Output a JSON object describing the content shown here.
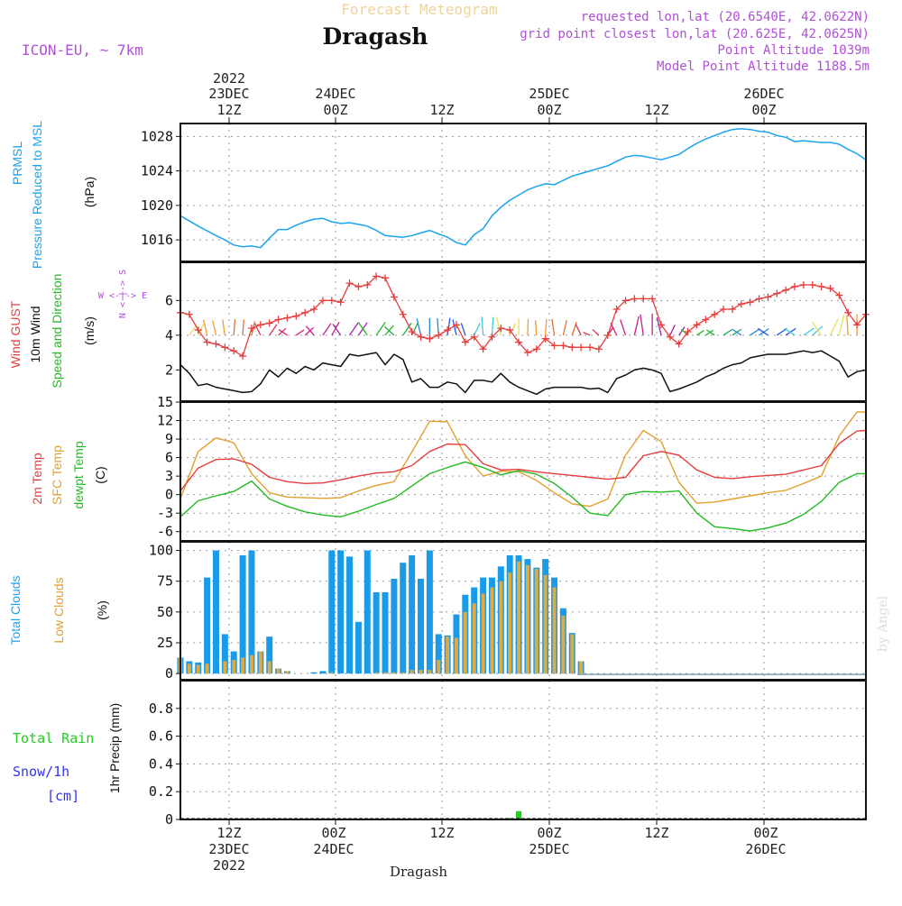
{
  "header": {
    "product": "Forecast Meteogram",
    "station": "Dragash",
    "model": "ICON-EU, ~ 7km",
    "requested": "requested lon,lat (20.6540E, 42.0622N)",
    "gridpoint": "grid point closest lon,lat (20.625E, 42.0625N)",
    "point_alt": "Point Altitude 1039m",
    "model_alt": "Model Point Altitude 1188.5m"
  },
  "colors": {
    "pressure": "#1aa3ee",
    "gust": "#e83d3d",
    "wind10": "#111111",
    "wind_dir": "#22bb22",
    "t2m": "#e83d3d",
    "sfc": "#e2a02e",
    "dewpt": "#22bb22",
    "total_clouds": "#1a9be8",
    "low_clouds": "#ddaa44",
    "rain": "#22cc22",
    "snow": "#3333ee",
    "side_magenta": "#b050d8"
  },
  "top_axis": [
    {
      "hour": "12Z",
      "date": "23DEC",
      "year": "2022"
    },
    {
      "hour": "00Z",
      "date": "24DEC",
      "year": ""
    },
    {
      "hour": "12Z",
      "date": "",
      "year": ""
    },
    {
      "hour": "00Z",
      "date": "25DEC",
      "year": ""
    },
    {
      "hour": "12Z",
      "date": "",
      "year": ""
    },
    {
      "hour": "00Z",
      "date": "26DEC",
      "year": ""
    }
  ],
  "bottom_axis": [
    {
      "hour": "12Z",
      "date": "23DEC",
      "year": "2022"
    },
    {
      "hour": "00Z",
      "date": "24DEC",
      "year": ""
    },
    {
      "hour": "12Z",
      "date": "",
      "year": ""
    },
    {
      "hour": "00Z",
      "date": "25DEC",
      "year": ""
    },
    {
      "hour": "12Z",
      "date": "",
      "year": ""
    },
    {
      "hour": "00Z",
      "date": "26DEC",
      "year": ""
    }
  ],
  "footer_label": "Dragash",
  "signature": "by Angel",
  "labels": {
    "prmsl": "PRMSL",
    "pressure_msl": "Pressure Reduced to MSL",
    "hpa": "(hPa)",
    "wind_gust": "Wind GUST",
    "wind10": "10m Wind",
    "speed_dir": "Speed and Direction",
    "ms": "(m/s)",
    "compass_ns": "N <-|-> S",
    "compass_we": "W <-|-> E",
    "t2m": "2m Temp",
    "sfc": "SFC Temp",
    "dewpt": "dewpt Temp",
    "c": "(C)",
    "total_clouds": "Total Clouds",
    "low_clouds": "Low Clouds",
    "pct": "(%)",
    "total_rain": "Total  Rain",
    "snow": "Snow/1h",
    "cm": "[cm]",
    "precip": "1hr Precip (mm)"
  },
  "chart_data": [
    {
      "type": "line",
      "title": "PRMSL Pressure Reduced to MSL",
      "ylabel": "hPa",
      "ylim": [
        1013.5,
        1029.5
      ],
      "yticks": [
        "1016",
        "1020",
        "1024",
        "1028"
      ],
      "x_hours": [
        0,
        2,
        4,
        5,
        6,
        7,
        8,
        9,
        10,
        11,
        12,
        13,
        14,
        15,
        16,
        17,
        18,
        19,
        20,
        21,
        22,
        23,
        24,
        25,
        26,
        27,
        28,
        29,
        30,
        31,
        32,
        33,
        34,
        35,
        36,
        37,
        38,
        39,
        40,
        41,
        42,
        43,
        44,
        45,
        46,
        47,
        48,
        49,
        50,
        51,
        52,
        53,
        54,
        55,
        56,
        57,
        58,
        59,
        60,
        61,
        62,
        63,
        64,
        65,
        66,
        67,
        68,
        69,
        70,
        71,
        72,
        73,
        74,
        75,
        76,
        77
      ],
      "series": [
        {
          "name": "PRMSL",
          "values": [
            1018.8,
            1017.6,
            1016.5,
            1016,
            1015.4,
            1015.2,
            1015.3,
            1015.1,
            1016.2,
            1017.2,
            1017.2,
            1017.7,
            1018.1,
            1018.4,
            1018.5,
            1018.1,
            1017.9,
            1018.0,
            1017.8,
            1017.6,
            1017.1,
            1016.5,
            1016.4,
            1016.3,
            1016.5,
            1016.8,
            1017.1,
            1016.7,
            1016.3,
            1015.7,
            1015.4,
            1016.6,
            1017.3,
            1018.8,
            1019.8,
            1020.6,
            1021.2,
            1021.8,
            1022.2,
            1022.5,
            1022.4,
            1022.9,
            1023.4,
            1023.7,
            1024.0,
            1024.3,
            1024.6,
            1025.1,
            1025.6,
            1025.8,
            1025.7,
            1025.5,
            1025.3,
            1025.6,
            1025.9,
            1026.6,
            1027.2,
            1027.7,
            1028.1,
            1028.5,
            1028.8,
            1028.9,
            1028.8,
            1028.6,
            1028.5,
            1028.1,
            1027.9,
            1027.4,
            1027.5,
            1027.4,
            1027.3,
            1027.3,
            1027.1,
            1026.5,
            1026.0,
            1025.3
          ]
        }
      ]
    },
    {
      "type": "line",
      "title": "Wind GUST / 10m Wind Speed and Direction",
      "ylabel": "m/s",
      "ylim": [
        0.2,
        8.2
      ],
      "yticks": [
        "2",
        "4",
        "6"
      ],
      "x_hours": [
        0,
        1,
        2,
        3,
        4,
        5,
        6,
        7,
        8,
        9,
        10,
        11,
        12,
        13,
        14,
        15,
        16,
        17,
        18,
        19,
        20,
        21,
        22,
        23,
        24,
        25,
        26,
        27,
        28,
        29,
        30,
        31,
        32,
        33,
        34,
        35,
        36,
        37,
        38,
        39,
        40,
        41,
        42,
        43,
        44,
        45,
        46,
        47,
        48,
        49,
        50,
        51,
        52,
        53,
        54,
        55,
        56,
        57,
        58,
        59,
        60,
        61,
        62,
        63,
        64,
        65,
        66,
        67,
        68,
        69,
        70,
        71,
        72,
        73,
        74,
        75,
        76,
        77
      ],
      "series": [
        {
          "name": "Wind GUST",
          "values": [
            5.3,
            5.2,
            4.3,
            3.6,
            3.5,
            3.3,
            3.1,
            2.8,
            4.4,
            4.6,
            4.7,
            4.9,
            5.0,
            5.1,
            5.3,
            5.5,
            6.0,
            6.0,
            5.9,
            7.0,
            6.8,
            6.9,
            7.4,
            7.3,
            6.2,
            5.2,
            4.2,
            3.9,
            3.8,
            4.0,
            4.3,
            4.6,
            3.6,
            3.9,
            3.2,
            3.9,
            4.4,
            4.3,
            3.6,
            3.0,
            3.2,
            3.8,
            3.4,
            3.4,
            3.3,
            3.3,
            3.3,
            3.2,
            4.0,
            5.5,
            6.0,
            6.1,
            6.1,
            6.1,
            4.6,
            3.9,
            3.5,
            4.2,
            4.6,
            4.9,
            5.2,
            5.5,
            5.5,
            5.8,
            5.9,
            6.1,
            6.2,
            6.4,
            6.6,
            6.8,
            6.9,
            6.9,
            6.8,
            6.7,
            6.3,
            5.3,
            4.6,
            5.2
          ]
        },
        {
          "name": "10m Wind",
          "values": [
            2.3,
            1.8,
            1.1,
            1.2,
            1.0,
            0.9,
            0.8,
            0.7,
            0.75,
            1.2,
            2.0,
            1.6,
            2.1,
            1.8,
            2.2,
            2.0,
            2.4,
            2.3,
            2.2,
            2.9,
            2.8,
            2.9,
            3.0,
            2.3,
            2.9,
            2.6,
            1.3,
            1.5,
            1.0,
            1.0,
            1.3,
            1.2,
            0.7,
            1.4,
            1.4,
            1.3,
            1.8,
            1.3,
            1.0,
            0.8,
            0.6,
            0.9,
            1.0,
            1.0,
            1.0,
            1.0,
            0.9,
            0.95,
            0.7,
            1.5,
            1.7,
            2.0,
            2.1,
            2.0,
            1.8,
            0.75,
            0.9,
            1.1,
            1.3,
            1.6,
            1.8,
            2.1,
            2.3,
            2.4,
            2.7,
            2.8,
            2.9,
            2.9,
            2.9,
            3.0,
            3.1,
            3.0,
            3.1,
            2.8,
            2.5,
            1.6,
            1.9,
            2.0
          ]
        }
      ]
    },
    {
      "type": "line",
      "title": "2m Temp / SFC Temp / dewpt Temp",
      "ylabel": "C",
      "ylim": [
        -7.5,
        15
      ],
      "yticks": [
        "-6",
        "-3",
        "0",
        "3",
        "6",
        "9",
        "12",
        "15"
      ],
      "x_hours": [
        0,
        2,
        4,
        6,
        8,
        10,
        12,
        14,
        16,
        18,
        20,
        22,
        24,
        26,
        28,
        30,
        32,
        34,
        36,
        38,
        40,
        42,
        44,
        46,
        48,
        50,
        52,
        54,
        56,
        58,
        60,
        62,
        64,
        66,
        68,
        70,
        72,
        74,
        76,
        77
      ],
      "series": [
        {
          "name": "2m Temp",
          "values": [
            0.6,
            4.3,
            5.7,
            5.8,
            4.9,
            2.8,
            2.1,
            1.8,
            1.9,
            2.4,
            3.0,
            3.5,
            3.7,
            4.7,
            7.0,
            8.2,
            8.1,
            5.0,
            4.0,
            4.1,
            3.7,
            3.4,
            3.1,
            2.8,
            2.5,
            2.8,
            6.3,
            7.0,
            6.4,
            4.0,
            2.8,
            2.6,
            2.9,
            3.1,
            3.3,
            4.0,
            4.7,
            8.3,
            10.3,
            10.4
          ]
        },
        {
          "name": "SFC Temp",
          "values": [
            -0.7,
            7.0,
            9.2,
            8.4,
            3.4,
            0.3,
            -0.4,
            -0.5,
            -0.6,
            -0.5,
            0.6,
            1.5,
            2.1,
            6.9,
            11.9,
            11.8,
            6.3,
            3.0,
            3.8,
            3.7,
            2.3,
            0.3,
            -1.5,
            -1.9,
            -0.7,
            6.4,
            10.4,
            8.6,
            2.0,
            -1.4,
            -1.2,
            -0.7,
            -0.2,
            0.3,
            0.7,
            1.8,
            3.0,
            9.5,
            13.4,
            13.4
          ]
        },
        {
          "name": "dewpt Temp",
          "values": [
            -3.6,
            -1.0,
            -0.2,
            0.5,
            2.2,
            -0.7,
            -1.9,
            -2.8,
            -3.3,
            -3.6,
            -2.7,
            -1.6,
            -0.6,
            1.4,
            3.4,
            4.4,
            5.3,
            4.4,
            3.2,
            3.9,
            3.3,
            1.8,
            -0.4,
            -3.0,
            -3.4,
            0.0,
            0.5,
            0.4,
            0.6,
            -3.0,
            -5.2,
            -5.5,
            -5.9,
            -5.4,
            -4.6,
            -3.2,
            -1.1,
            2.0,
            3.4,
            3.4
          ]
        }
      ]
    },
    {
      "type": "bar",
      "title": "Total Clouds / Low Clouds",
      "ylabel": "%",
      "ylim": [
        -5,
        107
      ],
      "yticks": [
        "0",
        "25",
        "50",
        "75",
        "100"
      ],
      "x_hours": [
        0,
        1,
        2,
        3,
        4,
        5,
        6,
        7,
        8,
        9,
        10,
        11,
        12,
        13,
        14,
        15,
        16,
        17,
        18,
        19,
        20,
        21,
        22,
        23,
        24,
        25,
        26,
        27,
        28,
        29,
        30,
        31,
        32,
        33,
        34,
        35,
        36,
        37,
        38,
        39,
        40,
        41,
        42,
        43,
        44,
        45,
        46,
        47,
        48,
        49,
        50,
        51,
        52,
        53,
        54,
        55,
        56,
        57,
        58,
        59,
        60,
        61,
        62,
        63,
        64,
        65,
        66,
        67,
        68,
        69,
        70,
        71,
        72,
        73,
        74,
        75,
        76,
        77
      ],
      "series": [
        {
          "name": "Total Clouds",
          "values": [
            13,
            10,
            9,
            78,
            100,
            32,
            18,
            96,
            100,
            18,
            30,
            4,
            2,
            0,
            0,
            1,
            2,
            100,
            100,
            95,
            42,
            100,
            66,
            66,
            77,
            90,
            96,
            77,
            100,
            32,
            31,
            48,
            64,
            70,
            78,
            78,
            87,
            96,
            96,
            93,
            86,
            93,
            78,
            53,
            33,
            10,
            0,
            0,
            0,
            0,
            0,
            0,
            0,
            0,
            0,
            0,
            0,
            0,
            0,
            0,
            0,
            0,
            0,
            0,
            0,
            0,
            0,
            0,
            0,
            0,
            0,
            0,
            0,
            0,
            0,
            0,
            0,
            0
          ]
        },
        {
          "name": "Low Clouds",
          "values": [
            13,
            8,
            7,
            8,
            0,
            10,
            11,
            13,
            15,
            18,
            10,
            4,
            2,
            0,
            0,
            0,
            0,
            1,
            0,
            0,
            0,
            0,
            1,
            1,
            1,
            1,
            3,
            3,
            3,
            11,
            30,
            29,
            50,
            57,
            65,
            70,
            75,
            82,
            91,
            88,
            85,
            80,
            70,
            47,
            32,
            10,
            0,
            0,
            0,
            0,
            0,
            0,
            0,
            0,
            0,
            0,
            0,
            0,
            0,
            0,
            0,
            0,
            0,
            0,
            0,
            0,
            0,
            0,
            0,
            0,
            0,
            0,
            0,
            0,
            0,
            0,
            0,
            0
          ]
        }
      ]
    },
    {
      "type": "bar",
      "title": "Total Rain / Snow 1hr Precip",
      "ylabel": "mm",
      "ylim": [
        0,
        1
      ],
      "yticks": [
        "0",
        "0.2",
        "0.4",
        "0.6",
        "0.8"
      ],
      "x_hours": [
        37,
        38
      ],
      "series": [
        {
          "name": "Total Rain",
          "values": [
            0.01,
            0.06
          ]
        },
        {
          "name": "Snow/1h",
          "values": [
            0,
            0
          ]
        }
      ]
    }
  ]
}
